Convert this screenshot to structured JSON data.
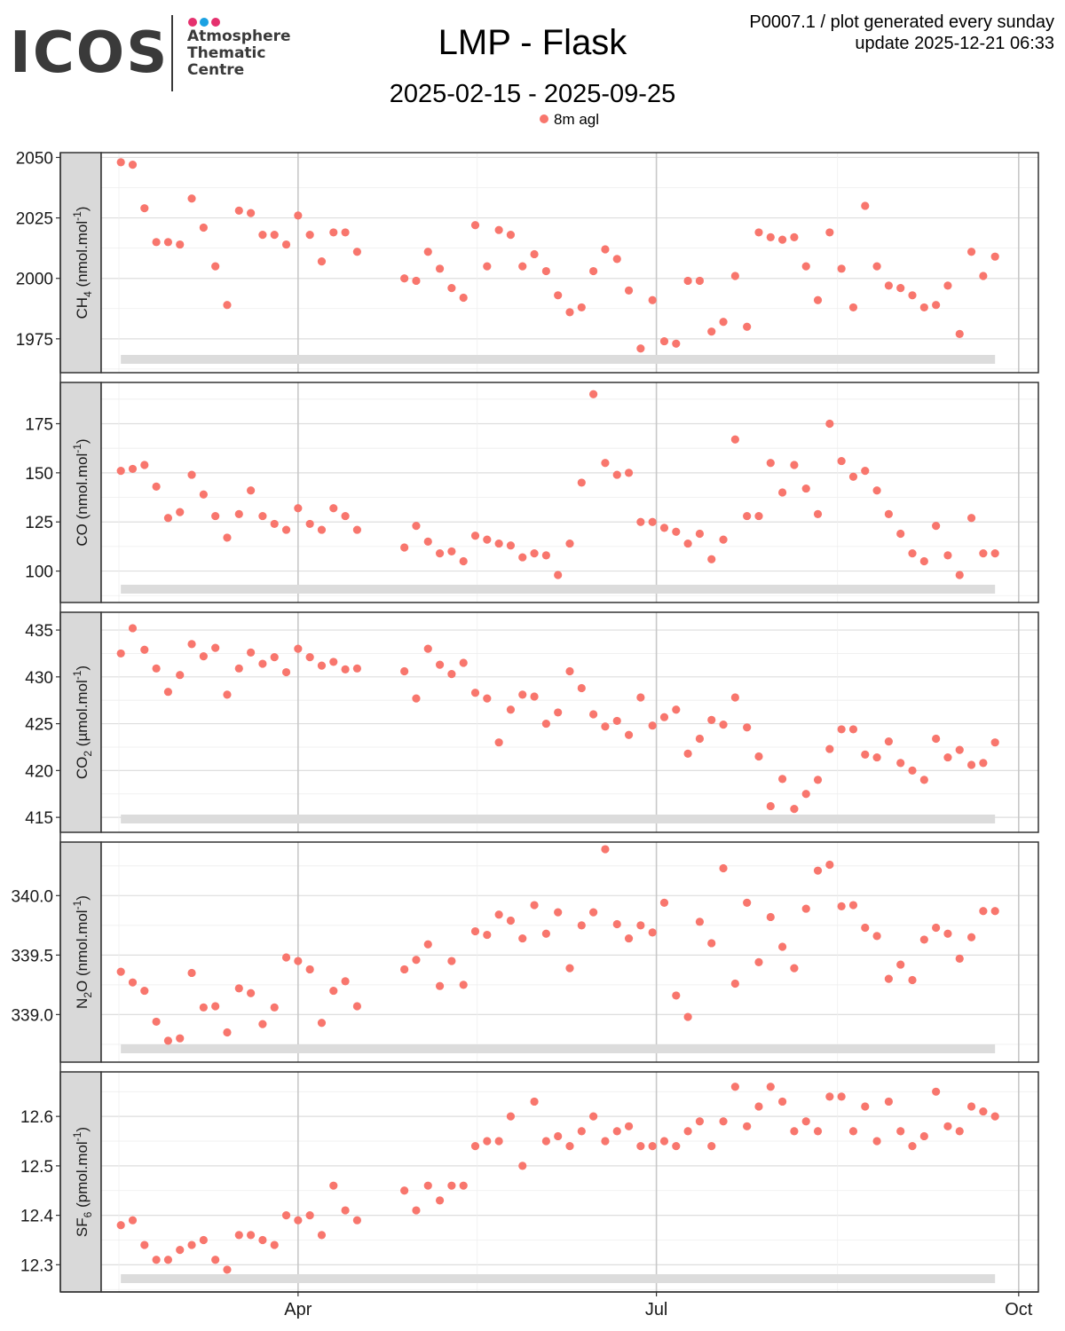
{
  "logo": {
    "wordmark": "ICOS",
    "lines": [
      "Atmosphere",
      "Thematic",
      "Centre"
    ],
    "dot_colors": [
      "#e5316e",
      "#1ba1e2",
      "#e5316e"
    ]
  },
  "header": {
    "title": "LMP - Flask",
    "subtitle": "2025-02-15 - 2025-09-25",
    "meta_line1": "P0007.1 / plot generated every sunday",
    "meta_line2": "update  2025-12-21 06:33"
  },
  "legend": {
    "label": "8m agl",
    "color": "#f8766d"
  },
  "chart_data": {
    "type": "scatter",
    "color": "#f8766d",
    "x_axis": {
      "type": "date",
      "range": [
        "2025-02-10",
        "2025-10-06"
      ],
      "ticks": [
        {
          "date": "2025-04-01",
          "label": "Apr"
        },
        {
          "date": "2025-07-01",
          "label": "Jul"
        },
        {
          "date": "2025-10-01",
          "label": "Oct"
        }
      ]
    },
    "dates": [
      "2025-02-15",
      "2025-02-18",
      "2025-02-21",
      "2025-02-24",
      "2025-02-27",
      "2025-03-02",
      "2025-03-05",
      "2025-03-08",
      "2025-03-11",
      "2025-03-14",
      "2025-03-17",
      "2025-03-20",
      "2025-03-23",
      "2025-03-26",
      "2025-03-29",
      "2025-04-01",
      "2025-04-04",
      "2025-04-07",
      "2025-04-10",
      "2025-04-13",
      "2025-04-16",
      "2025-04-28",
      "2025-05-01",
      "2025-05-04",
      "2025-05-07",
      "2025-05-10",
      "2025-05-13",
      "2025-05-16",
      "2025-05-19",
      "2025-05-22",
      "2025-05-25",
      "2025-05-28",
      "2025-05-31",
      "2025-06-03",
      "2025-06-06",
      "2025-06-09",
      "2025-06-12",
      "2025-06-15",
      "2025-06-18",
      "2025-06-21",
      "2025-06-24",
      "2025-06-27",
      "2025-06-30",
      "2025-07-03",
      "2025-07-06",
      "2025-07-09",
      "2025-07-12",
      "2025-07-15",
      "2025-07-18",
      "2025-07-21",
      "2025-07-24",
      "2025-07-27",
      "2025-07-30",
      "2025-08-02",
      "2025-08-05",
      "2025-08-08",
      "2025-08-11",
      "2025-08-14",
      "2025-08-17",
      "2025-08-20",
      "2025-08-23",
      "2025-08-26",
      "2025-08-29",
      "2025-09-01",
      "2025-09-04",
      "2025-09-07",
      "2025-09-10",
      "2025-09-13",
      "2025-09-16",
      "2025-09-19",
      "2025-09-22",
      "2025-09-25"
    ],
    "panels": [
      {
        "id": "ch4",
        "ylabel": {
          "base": "CH",
          "sub": "4",
          "unit_pre": " (nmol.mol",
          "sup": "-1",
          "unit_post": ")"
        },
        "yticks": [
          1975,
          2000,
          2025,
          2050
        ],
        "ylim": [
          1961,
          2052
        ],
        "values": [
          2048,
          2047,
          2029,
          2015,
          2015,
          2014,
          2033,
          2021,
          2005,
          1989,
          2028,
          2027,
          2018,
          2018,
          2014,
          2026,
          2018,
          2007,
          2019,
          2019,
          2011,
          2000,
          1999,
          2011,
          2004,
          1996,
          1992,
          2022,
          2005,
          2020,
          2018,
          2005,
          2010,
          2003,
          1993,
          1986,
          1988,
          2003,
          2012,
          2008,
          1995,
          1971,
          1991,
          1974,
          1973,
          1999,
          1999,
          1978,
          1982,
          2001,
          1980,
          2019,
          2017,
          2016,
          2017,
          2005,
          1991,
          2019,
          2004,
          1988,
          2030,
          2005,
          1997,
          1996,
          1993,
          1988,
          1989,
          1997,
          1977,
          2011,
          2001,
          2009
        ]
      },
      {
        "id": "co",
        "ylabel": {
          "base": "CO",
          "sub": "",
          "unit_pre": " (nmol.mol",
          "sup": "-1",
          "unit_post": ")"
        },
        "yticks": [
          100,
          125,
          150,
          175
        ],
        "ylim": [
          84,
          196
        ],
        "values": [
          151,
          152,
          154,
          143,
          127,
          130,
          149,
          139,
          128,
          117,
          129,
          141,
          128,
          124,
          121,
          132,
          124,
          121,
          132,
          128,
          121,
          112,
          123,
          115,
          109,
          110,
          105,
          118,
          116,
          114,
          113,
          107,
          109,
          108,
          98,
          114,
          145,
          190,
          155,
          149,
          150,
          125,
          125,
          122,
          120,
          114,
          119,
          106,
          116,
          167,
          128,
          128,
          155,
          140,
          154,
          142,
          129,
          175,
          156,
          148,
          151,
          141,
          129,
          119,
          109,
          105,
          123,
          108,
          98,
          127,
          109,
          109
        ]
      },
      {
        "id": "co2",
        "ylabel": {
          "base": "CO",
          "sub": "2",
          "unit_pre": " (µmol.mol",
          "sup": "-1",
          "unit_post": ")"
        },
        "yticks": [
          415,
          420,
          425,
          430,
          435
        ],
        "ylim": [
          413.4,
          436.9
        ],
        "values": [
          432.5,
          435.2,
          432.9,
          430.9,
          428.4,
          430.2,
          433.5,
          432.2,
          433.1,
          428.1,
          430.9,
          432.6,
          431.4,
          432.1,
          430.5,
          433,
          432.1,
          431.2,
          431.6,
          430.8,
          430.9,
          430.6,
          427.7,
          433,
          431.3,
          430.3,
          431.5,
          428.3,
          427.7,
          423,
          426.5,
          428.1,
          427.9,
          425,
          426.2,
          430.6,
          428.8,
          426,
          424.7,
          425.3,
          423.8,
          427.8,
          424.8,
          425.7,
          426.5,
          421.8,
          423.4,
          425.4,
          424.9,
          427.8,
          424.6,
          421.5,
          416.2,
          419.1,
          415.9,
          417.5,
          419,
          422.3,
          424.4,
          424.4,
          421.7,
          421.4,
          423.1,
          420.8,
          420,
          419,
          423.4,
          421.4,
          422.2,
          420.6,
          420.8,
          423
        ]
      },
      {
        "id": "n2o",
        "ylabel": {
          "base": "N",
          "sub": "2",
          "unit_pre": "O (nmol.mol",
          "sup": "-1",
          "unit_post": ")"
        },
        "yticks": [
          339.0,
          339.5,
          340.0
        ],
        "ylim": [
          338.6,
          340.45
        ],
        "ytick_decimals": 1,
        "values": [
          339.36,
          339.27,
          339.2,
          338.94,
          338.78,
          338.8,
          339.35,
          339.06,
          339.07,
          338.85,
          339.22,
          339.18,
          338.92,
          339.06,
          339.48,
          339.45,
          339.38,
          338.93,
          339.2,
          339.28,
          339.07,
          339.38,
          339.46,
          339.59,
          339.24,
          339.45,
          339.25,
          339.7,
          339.67,
          339.84,
          339.79,
          339.64,
          339.92,
          339.68,
          339.86,
          339.39,
          339.75,
          339.86,
          340.39,
          339.76,
          339.64,
          339.75,
          339.69,
          339.94,
          339.16,
          338.98,
          339.78,
          339.6,
          340.23,
          339.26,
          339.94,
          339.44,
          339.82,
          339.57,
          339.39,
          339.89,
          340.21,
          340.26,
          339.91,
          339.92,
          339.73,
          339.66,
          339.3,
          339.42,
          339.29,
          339.63,
          339.73,
          339.68,
          339.47,
          339.65,
          339.87,
          339.87
        ]
      },
      {
        "id": "sf6",
        "ylabel": {
          "base": "SF",
          "sub": "6",
          "unit_pre": " (pmol.mol",
          "sup": "-1",
          "unit_post": ")"
        },
        "yticks": [
          12.3,
          12.4,
          12.5,
          12.6
        ],
        "ylim": [
          12.245,
          12.69
        ],
        "ytick_decimals": 1,
        "values": [
          12.38,
          12.39,
          12.34,
          12.31,
          12.31,
          12.33,
          12.34,
          12.35,
          12.31,
          12.29,
          12.36,
          12.36,
          12.35,
          12.34,
          12.4,
          12.39,
          12.4,
          12.36,
          12.46,
          12.41,
          12.39,
          12.45,
          12.41,
          12.46,
          12.43,
          12.46,
          12.46,
          12.54,
          12.55,
          12.55,
          12.6,
          12.5,
          12.63,
          12.55,
          12.56,
          12.54,
          12.57,
          12.6,
          12.55,
          12.57,
          12.58,
          12.54,
          12.54,
          12.55,
          12.54,
          12.57,
          12.59,
          12.54,
          12.59,
          12.66,
          12.58,
          12.62,
          12.66,
          12.63,
          12.57,
          12.59,
          12.57,
          12.64,
          12.64,
          12.57,
          12.62,
          12.55,
          12.63,
          12.57,
          12.54,
          12.56,
          12.65,
          12.58,
          12.57,
          12.62,
          12.61,
          12.6
        ]
      }
    ]
  }
}
